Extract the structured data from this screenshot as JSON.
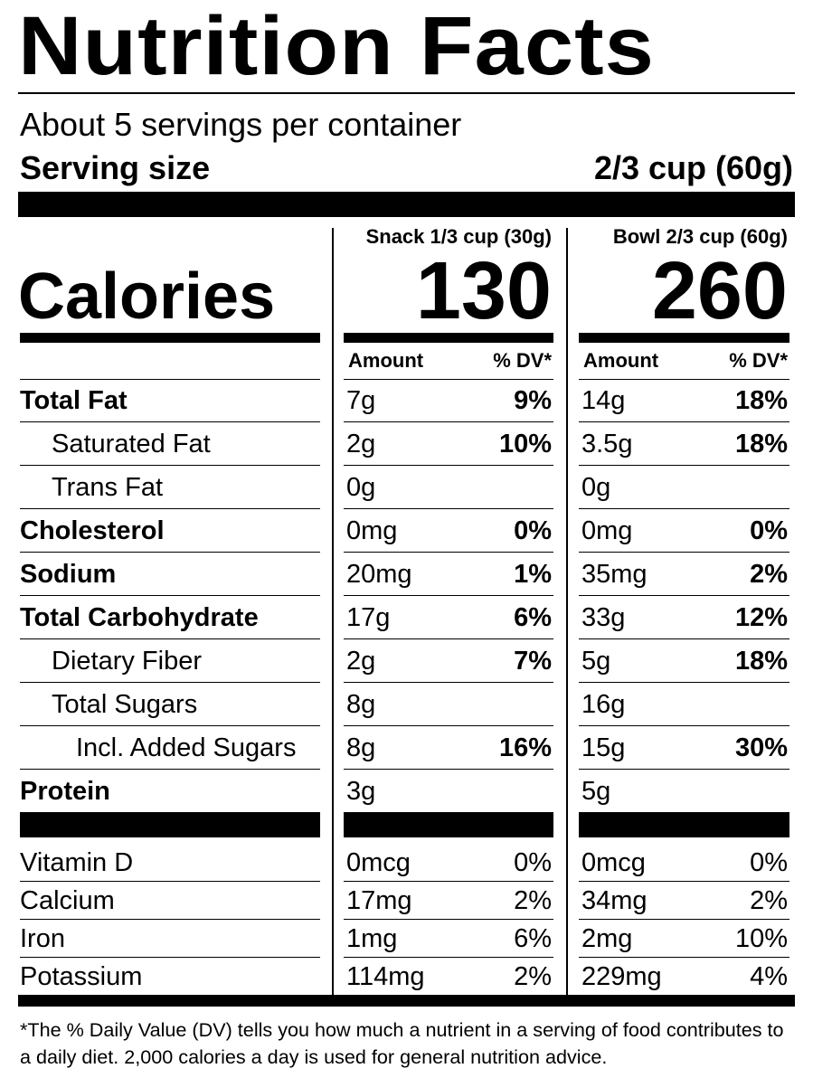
{
  "title": "Nutrition Facts",
  "servings": "About 5 servings per container",
  "serving_size": {
    "label": "Serving size",
    "value": "2/3 cup (60g)"
  },
  "calories_label": "Calories",
  "columns": [
    {
      "header": "Snack 1/3 cup (30g)",
      "calories": "130"
    },
    {
      "header": "Bowl 2/3 cup (60g)",
      "calories": "260"
    }
  ],
  "amount_header": "Amount",
  "dv_header": "% DV*",
  "nutrients": [
    {
      "name": "Total Fat",
      "snack": {
        "amount": "7g",
        "dv": "9%"
      },
      "bowl": {
        "amount": "14g",
        "dv": "18%"
      }
    },
    {
      "name": "Saturated Fat",
      "snack": {
        "amount": "2g",
        "dv": "10%"
      },
      "bowl": {
        "amount": "3.5g",
        "dv": "18%"
      }
    },
    {
      "name": "Trans Fat",
      "snack": {
        "amount": "0g"
      },
      "bowl": {
        "amount": "0g"
      }
    },
    {
      "name": "Cholesterol",
      "snack": {
        "amount": "0mg",
        "dv": "0%"
      },
      "bowl": {
        "amount": "0mg",
        "dv": "0%"
      }
    },
    {
      "name": "Sodium",
      "snack": {
        "amount": "20mg",
        "dv": "1%"
      },
      "bowl": {
        "amount": "35mg",
        "dv": "2%"
      }
    },
    {
      "name": "Total Carbohydrate",
      "snack": {
        "amount": "17g",
        "dv": "6%"
      },
      "bowl": {
        "amount": "33g",
        "dv": "12%"
      }
    },
    {
      "name": "Dietary Fiber",
      "snack": {
        "amount": "2g",
        "dv": "7%"
      },
      "bowl": {
        "amount": "5g",
        "dv": "18%"
      }
    },
    {
      "name": "Total Sugars",
      "snack": {
        "amount": "8g"
      },
      "bowl": {
        "amount": "16g"
      }
    },
    {
      "name": "Incl. Added Sugars",
      "snack": {
        "amount": "8g",
        "dv": "16%"
      },
      "bowl": {
        "amount": "15g",
        "dv": "30%"
      }
    },
    {
      "name": "Protein",
      "snack": {
        "amount": "3g"
      },
      "bowl": {
        "amount": "5g"
      }
    }
  ],
  "vitamins": [
    {
      "name": "Vitamin D",
      "snack": {
        "amount": "0mcg",
        "dv": "0%"
      },
      "bowl": {
        "amount": "0mcg",
        "dv": "0%"
      }
    },
    {
      "name": "Calcium",
      "snack": {
        "amount": "17mg",
        "dv": "2%"
      },
      "bowl": {
        "amount": "34mg",
        "dv": "2%"
      }
    },
    {
      "name": "Iron",
      "snack": {
        "amount": "1mg",
        "dv": "6%"
      },
      "bowl": {
        "amount": "2mg",
        "dv": "10%"
      }
    },
    {
      "name": "Potassium",
      "snack": {
        "amount": "114mg",
        "dv": "2%"
      },
      "bowl": {
        "amount": "229mg",
        "dv": "4%"
      }
    }
  ],
  "footnote": "*The % Daily Value (DV) tells you how much a nutrient in a serving of food contributes to a daily diet. 2,000 calories a day is used for general nutrition advice."
}
